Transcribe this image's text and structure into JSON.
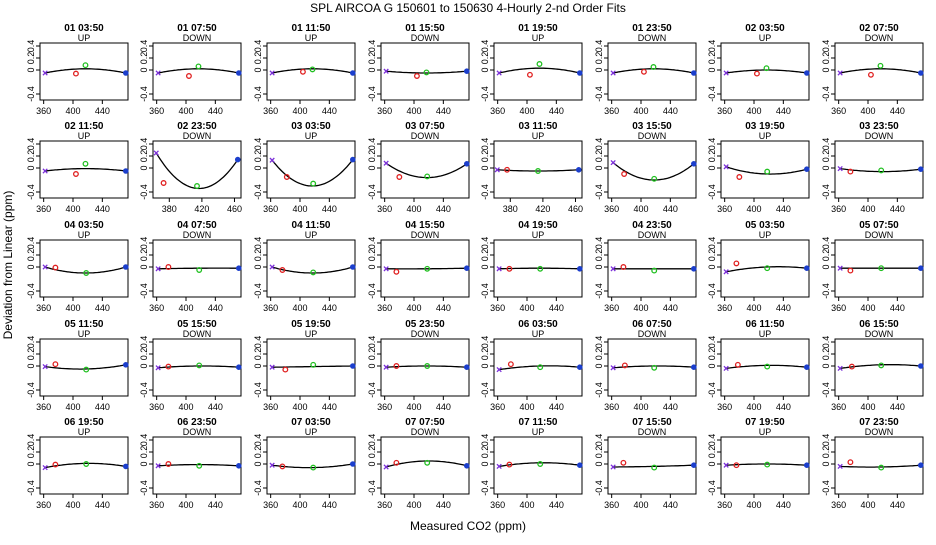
{
  "title": "SPL   AIRCOA G   150601 to 150630   4-Hourly 2-nd Order Fits",
  "xlabel": "Measured CO2 (ppm)",
  "ylabel": "Deviation from Linear (ppm)",
  "colors": {
    "low": "#7B2FD9",
    "mid1": "#E02020",
    "mid2": "#20C020",
    "high": "#1C3FCC",
    "fit": "#000000"
  },
  "chart_data": {
    "type": "scatter",
    "layout": {
      "rows": 5,
      "cols": 8
    },
    "ylim": [
      -0.5,
      0.45
    ],
    "yticks": [
      -0.4,
      0,
      0.2,
      0.4
    ],
    "ytick_labels": [
      "-0.4",
      "0",
      "0.2",
      "0.4"
    ],
    "default_xlim": [
      355,
      475
    ],
    "default_xticks": [
      360,
      400,
      440
    ],
    "panels": [
      {
        "title": "01 03:50",
        "dir": "UP",
        "pts": [
          [
            362,
            -0.05
          ],
          [
            404,
            -0.06
          ],
          [
            417,
            0.08
          ],
          [
            472,
            -0.05
          ]
        ],
        "fit": [
          0.02,
          -0.05
        ]
      },
      {
        "title": "01 07:50",
        "dir": "DOWN",
        "pts": [
          [
            362,
            -0.05
          ],
          [
            404,
            -0.1
          ],
          [
            417,
            0.06
          ],
          [
            472,
            -0.05
          ]
        ],
        "fit": [
          0.02,
          -0.05
        ]
      },
      {
        "title": "01 11:50",
        "dir": "UP",
        "pts": [
          [
            362,
            -0.05
          ],
          [
            404,
            -0.03
          ],
          [
            417,
            0.01
          ],
          [
            472,
            -0.05
          ]
        ],
        "fit": [
          0.02,
          -0.05
        ]
      },
      {
        "title": "01 15:50",
        "dir": "DOWN",
        "pts": [
          [
            362,
            -0.02
          ],
          [
            404,
            -0.1
          ],
          [
            417,
            -0.04
          ],
          [
            472,
            -0.02
          ]
        ],
        "fit": [
          -0.05,
          -0.02
        ]
      },
      {
        "title": "01 19:50",
        "dir": "UP",
        "pts": [
          [
            362,
            -0.05
          ],
          [
            404,
            -0.08
          ],
          [
            417,
            0.1
          ],
          [
            472,
            -0.05
          ]
        ],
        "fit": [
          0.03,
          -0.05
        ]
      },
      {
        "title": "01 23:50",
        "dir": "DOWN",
        "pts": [
          [
            362,
            -0.05
          ],
          [
            404,
            -0.03
          ],
          [
            417,
            0.05
          ],
          [
            472,
            -0.05
          ]
        ],
        "fit": [
          0.02,
          -0.05
        ]
      },
      {
        "title": "02 03:50",
        "dir": "UP",
        "pts": [
          [
            362,
            -0.05
          ],
          [
            404,
            -0.06
          ],
          [
            417,
            0.03
          ],
          [
            472,
            -0.05
          ]
        ],
        "fit": [
          0.0,
          -0.05
        ]
      },
      {
        "title": "02 07:50",
        "dir": "DOWN",
        "pts": [
          [
            362,
            -0.05
          ],
          [
            404,
            -0.08
          ],
          [
            417,
            0.07
          ],
          [
            472,
            -0.05
          ]
        ],
        "fit": [
          0.02,
          -0.05
        ]
      },
      {
        "title": "02 11:50",
        "dir": "UP",
        "pts": [
          [
            362,
            -0.05
          ],
          [
            404,
            -0.1
          ],
          [
            417,
            0.07
          ],
          [
            472,
            -0.05
          ]
        ],
        "fit": [
          -0.01,
          -0.05
        ]
      },
      {
        "title": "02 23:50",
        "dir": "DOWN",
        "xlim": [
          360,
          468
        ],
        "xticks": [
          380,
          420,
          460
        ],
        "pts": [
          [
            364,
            0.25
          ],
          [
            373,
            -0.25
          ],
          [
            414,
            -0.3
          ],
          [
            464,
            0.14
          ]
        ],
        "fit": [
          -0.34,
          0.14
        ]
      },
      {
        "title": "03 03:50",
        "dir": "UP",
        "pts": [
          [
            362,
            0.13
          ],
          [
            382,
            -0.15
          ],
          [
            418,
            -0.26
          ],
          [
            472,
            0.14
          ]
        ],
        "fit": [
          -0.3,
          0.14
        ]
      },
      {
        "title": "03 07:50",
        "dir": "DOWN",
        "pts": [
          [
            362,
            0.08
          ],
          [
            380,
            -0.15
          ],
          [
            418,
            -0.14
          ],
          [
            472,
            0.07
          ]
        ],
        "fit": [
          -0.16,
          0.07
        ]
      },
      {
        "title": "03 11:50",
        "dir": "UP",
        "xlim": [
          360,
          468
        ],
        "xticks": [
          380,
          420,
          460
        ],
        "pts": [
          [
            364,
            -0.03
          ],
          [
            376,
            -0.03
          ],
          [
            414,
            -0.05
          ],
          [
            464,
            -0.03
          ]
        ],
        "fit": [
          -0.05,
          -0.03
        ]
      },
      {
        "title": "03 15:50",
        "dir": "DOWN",
        "pts": [
          [
            362,
            0.09
          ],
          [
            377,
            -0.1
          ],
          [
            418,
            -0.18
          ],
          [
            472,
            0.07
          ]
        ],
        "fit": [
          -0.2,
          0.07
        ]
      },
      {
        "title": "03 19:50",
        "dir": "UP",
        "pts": [
          [
            362,
            0.02
          ],
          [
            380,
            -0.15
          ],
          [
            418,
            -0.06
          ],
          [
            472,
            -0.02
          ]
        ],
        "fit": [
          -0.1,
          -0.02
        ]
      },
      {
        "title": "03 23:50",
        "dir": "DOWN",
        "pts": [
          [
            362,
            -0.01
          ],
          [
            376,
            -0.06
          ],
          [
            418,
            -0.04
          ],
          [
            472,
            -0.02
          ]
        ],
        "fit": [
          -0.06,
          -0.02
        ]
      },
      {
        "title": "04 03:50",
        "dir": "UP",
        "pts": [
          [
            362,
            0.0
          ],
          [
            376,
            -0.01
          ],
          [
            418,
            -0.1
          ],
          [
            472,
            0.0
          ]
        ],
        "fit": [
          -0.1,
          0.0
        ]
      },
      {
        "title": "04 07:50",
        "dir": "DOWN",
        "pts": [
          [
            362,
            -0.03
          ],
          [
            376,
            0.0
          ],
          [
            418,
            -0.05
          ],
          [
            472,
            -0.02
          ]
        ],
        "fit": [
          -0.02,
          -0.02
        ]
      },
      {
        "title": "04 11:50",
        "dir": "UP",
        "pts": [
          [
            362,
            0.0
          ],
          [
            376,
            -0.05
          ],
          [
            418,
            -0.09
          ],
          [
            472,
            0.0
          ]
        ],
        "fit": [
          -0.1,
          0.0
        ]
      },
      {
        "title": "04 15:50",
        "dir": "DOWN",
        "pts": [
          [
            362,
            -0.03
          ],
          [
            376,
            -0.08
          ],
          [
            418,
            -0.03
          ],
          [
            472,
            -0.02
          ]
        ],
        "fit": [
          -0.03,
          -0.02
        ]
      },
      {
        "title": "04 19:50",
        "dir": "UP",
        "pts": [
          [
            362,
            -0.03
          ],
          [
            376,
            -0.03
          ],
          [
            418,
            -0.03
          ],
          [
            472,
            -0.03
          ]
        ],
        "fit": [
          -0.02,
          -0.03
        ]
      },
      {
        "title": "04 23:50",
        "dir": "DOWN",
        "pts": [
          [
            362,
            -0.03
          ],
          [
            376,
            0.0
          ],
          [
            418,
            -0.06
          ],
          [
            472,
            -0.03
          ]
        ],
        "fit": [
          -0.03,
          -0.03
        ]
      },
      {
        "title": "05 03:50",
        "dir": "UP",
        "pts": [
          [
            362,
            -0.08
          ],
          [
            376,
            0.06
          ],
          [
            418,
            -0.02
          ],
          [
            472,
            -0.02
          ]
        ],
        "fit": [
          0.0,
          -0.02
        ]
      },
      {
        "title": "05 07:50",
        "dir": "DOWN",
        "pts": [
          [
            362,
            -0.02
          ],
          [
            376,
            -0.06
          ],
          [
            418,
            -0.02
          ],
          [
            472,
            -0.02
          ]
        ],
        "fit": [
          -0.02,
          -0.02
        ]
      },
      {
        "title": "05 11:50",
        "dir": "UP",
        "pts": [
          [
            362,
            -0.01
          ],
          [
            376,
            0.03
          ],
          [
            418,
            -0.06
          ],
          [
            472,
            0.02
          ]
        ],
        "fit": [
          -0.05,
          0.02
        ]
      },
      {
        "title": "05 15:50",
        "dir": "DOWN",
        "pts": [
          [
            362,
            -0.03
          ],
          [
            376,
            -0.01
          ],
          [
            418,
            0.01
          ],
          [
            472,
            -0.02
          ]
        ],
        "fit": [
          0.0,
          -0.02
        ]
      },
      {
        "title": "05 19:50",
        "dir": "UP",
        "pts": [
          [
            362,
            -0.02
          ],
          [
            380,
            -0.06
          ],
          [
            418,
            0.02
          ],
          [
            472,
            0.0
          ]
        ],
        "fit": [
          -0.01,
          0.0
        ]
      },
      {
        "title": "05 23:50",
        "dir": "DOWN",
        "pts": [
          [
            362,
            -0.02
          ],
          [
            376,
            0.0
          ],
          [
            418,
            0.0
          ],
          [
            472,
            -0.02
          ]
        ],
        "fit": [
          0.0,
          -0.02
        ]
      },
      {
        "title": "06 03:50",
        "dir": "UP",
        "pts": [
          [
            362,
            -0.06
          ],
          [
            378,
            0.03
          ],
          [
            418,
            -0.02
          ],
          [
            472,
            -0.02
          ]
        ],
        "fit": [
          0.0,
          -0.02
        ]
      },
      {
        "title": "06 07:50",
        "dir": "DOWN",
        "pts": [
          [
            362,
            -0.03
          ],
          [
            378,
            0.01
          ],
          [
            418,
            -0.03
          ],
          [
            472,
            -0.02
          ]
        ],
        "fit": [
          0.0,
          -0.02
        ]
      },
      {
        "title": "06 11:50",
        "dir": "UP",
        "pts": [
          [
            362,
            -0.04
          ],
          [
            378,
            0.02
          ],
          [
            418,
            -0.01
          ],
          [
            472,
            -0.02
          ]
        ],
        "fit": [
          0.01,
          -0.02
        ]
      },
      {
        "title": "06 15:50",
        "dir": "DOWN",
        "pts": [
          [
            362,
            -0.04
          ],
          [
            378,
            -0.01
          ],
          [
            418,
            0.01
          ],
          [
            472,
            0.0
          ]
        ],
        "fit": [
          0.02,
          0.0
        ]
      },
      {
        "title": "06 19:50",
        "dir": "UP",
        "pts": [
          [
            362,
            -0.06
          ],
          [
            376,
            -0.01
          ],
          [
            418,
            0.0
          ],
          [
            472,
            -0.04
          ]
        ],
        "fit": [
          0.01,
          -0.04
        ]
      },
      {
        "title": "06 23:50",
        "dir": "DOWN",
        "pts": [
          [
            362,
            -0.03
          ],
          [
            376,
            0.0
          ],
          [
            418,
            -0.03
          ],
          [
            472,
            -0.03
          ]
        ],
        "fit": [
          -0.01,
          -0.03
        ]
      },
      {
        "title": "07 03:50",
        "dir": "UP",
        "pts": [
          [
            362,
            -0.02
          ],
          [
            376,
            -0.04
          ],
          [
            418,
            -0.06
          ],
          [
            472,
            0.0
          ]
        ],
        "fit": [
          -0.06,
          0.0
        ]
      },
      {
        "title": "07 07:50",
        "dir": "DOWN",
        "pts": [
          [
            362,
            -0.05
          ],
          [
            376,
            0.02
          ],
          [
            418,
            0.02
          ],
          [
            472,
            -0.03
          ]
        ],
        "fit": [
          0.05,
          -0.03
        ]
      },
      {
        "title": "07 11:50",
        "dir": "UP",
        "pts": [
          [
            362,
            -0.04
          ],
          [
            376,
            -0.01
          ],
          [
            418,
            0.0
          ],
          [
            472,
            -0.02
          ]
        ],
        "fit": [
          0.02,
          -0.02
        ]
      },
      {
        "title": "07 15:50",
        "dir": "DOWN",
        "pts": [
          [
            362,
            -0.05
          ],
          [
            376,
            0.02
          ],
          [
            418,
            -0.06
          ],
          [
            472,
            -0.02
          ]
        ],
        "fit": [
          -0.04,
          -0.02
        ]
      },
      {
        "title": "07 19:50",
        "dir": "UP",
        "pts": [
          [
            362,
            -0.02
          ],
          [
            376,
            -0.02
          ],
          [
            418,
            -0.01
          ],
          [
            472,
            -0.02
          ]
        ],
        "fit": [
          0.0,
          -0.02
        ]
      },
      {
        "title": "07 23:50",
        "dir": "DOWN",
        "pts": [
          [
            362,
            -0.04
          ],
          [
            376,
            0.03
          ],
          [
            418,
            -0.06
          ],
          [
            472,
            -0.02
          ]
        ],
        "fit": [
          -0.05,
          -0.02
        ]
      }
    ]
  }
}
